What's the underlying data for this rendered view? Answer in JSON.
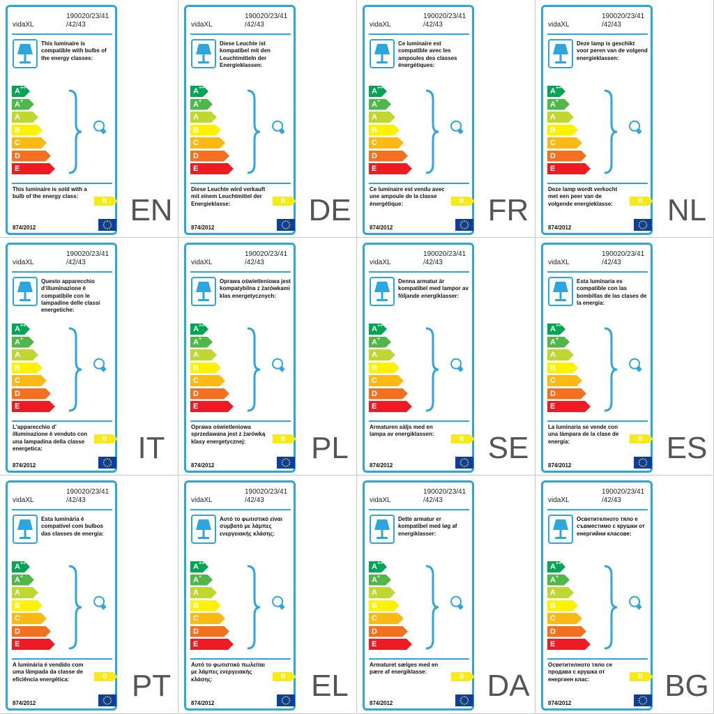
{
  "brand": "vidaXL",
  "model": "190020/23/41 /42/43",
  "regulation": "874/2012",
  "sold_class": "B",
  "energy_classes": [
    {
      "letter": "A",
      "sup": "++",
      "color": "#00a651"
    },
    {
      "letter": "A",
      "sup": "+",
      "color": "#50b848"
    },
    {
      "letter": "A",
      "sup": "",
      "color": "#bfd730"
    },
    {
      "letter": "B",
      "sup": "",
      "color": "#fff200"
    },
    {
      "letter": "C",
      "sup": "",
      "color": "#fdb913"
    },
    {
      "letter": "D",
      "sup": "",
      "color": "#f37021"
    },
    {
      "letter": "E",
      "sup": "",
      "color": "#ed1c24"
    }
  ],
  "colors": {
    "accent_blue": "#2ba6de",
    "eu_blue": "#0b3ea0",
    "eu_star": "#ffde00"
  },
  "labels": [
    {
      "code": "EN",
      "compatible": "This luminaire is compatible with bulbs of the energy classes:",
      "sold": "This luminaire is sold with a bulb of the energy class:"
    },
    {
      "code": "DE",
      "compatible": "Diese Leuchte ist kompatibel mit den Leuchtmitteln der Energieklassen:",
      "sold": "Diese Leuchte wird verkauft mit einem Leuchtmittel der Energieklasse:"
    },
    {
      "code": "FR",
      "compatible": "Ce luminaire est compatible avec les ampoules des classes énergétiques:",
      "sold": "Ce luminaire est vendu avec une ampoule de la classe énergétique:"
    },
    {
      "code": "NL",
      "compatible": "Deze lamp is geschikt voor peren van de volgend energieklassen:",
      "sold": "Deze lamp wordt verkocht met een peer van de volgende energieklasse:"
    },
    {
      "code": "IT",
      "compatible": "Questo apparecchio d'illuminazione è compatibile con le lampadine delle classi energetiche:",
      "sold": "L'apparecchio d' illuminazione è venduto con una lampadina della classe energetica:"
    },
    {
      "code": "PL",
      "compatible": "Oprawa oświetleniowa jest kompatybilna z żarówkami klas energetycznych:",
      "sold": "Oprawa oświetleniowa sprzedawana jest z żarówką klasy energetycznej:"
    },
    {
      "code": "SE",
      "compatible": "Denna armatur är kompatibel med lampor av följande energiklasser:",
      "sold": "Armaturen säljs med en lampa av energiklassen:"
    },
    {
      "code": "ES",
      "compatible": "Esta luminaria es compatible con las bombillas de las clases de la energía:",
      "sold": "La luminaria se vende con una lámpara de la clase de energía:"
    },
    {
      "code": "PT",
      "compatible": "Esta luminária é compatível com bulbos das classes de energia:",
      "sold": "A luminária é vendido com uma lâmpada da classe de eficiência energética:"
    },
    {
      "code": "EL",
      "compatible": "Αυτό το φωτιστικό είναι συμβατό με λάμπες ενεργειακής κλάσης:",
      "sold": "Αυτό το φωτιστικό πωλείται με λάμπες ενεργειακής κλάσης:"
    },
    {
      "code": "DA",
      "compatible": "Dette armatur er kompatibel med løg af energiklasser:",
      "sold": "Armaturet sælges med en pære af energiklasse:"
    },
    {
      "code": "BG",
      "compatible": "Осветителното тяло е съвместимо с крушки от енергийни класове:",
      "sold": "Осветителното тяло се продава с крушка от енергиен клас:"
    }
  ]
}
